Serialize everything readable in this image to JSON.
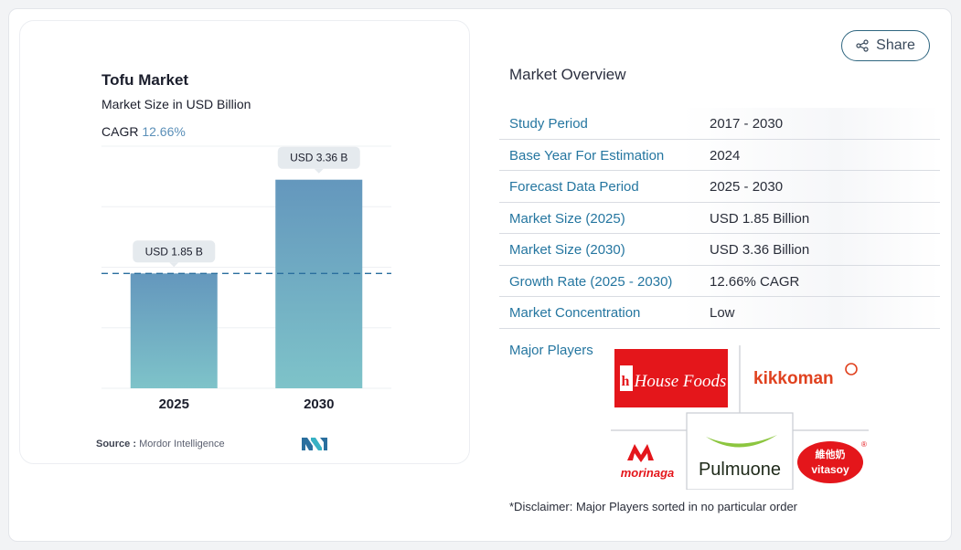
{
  "chart": {
    "title": "Tofu Market",
    "subtitle": "Market Size in USD Billion",
    "cagr_label": "CAGR",
    "cagr_value": "12.66%",
    "source_label": "Source :",
    "source_value": "Mordor Intelligence"
  },
  "chart_data": {
    "type": "bar",
    "categories": [
      "2025",
      "2030"
    ],
    "values": [
      1.85,
      3.36
    ],
    "data_labels": [
      "USD 1.85 B",
      "USD 3.36 B"
    ],
    "title": "Tofu Market",
    "subtitle": "Market Size in USD Billion",
    "ylim": [
      0,
      3.9
    ],
    "grid": true,
    "reference_line": 1.85
  },
  "share": {
    "label": "Share"
  },
  "overview": {
    "title": "Market Overview",
    "rows": [
      {
        "key": "Study Period",
        "value": "2017 - 2030"
      },
      {
        "key": "Base Year For Estimation",
        "value": "2024"
      },
      {
        "key": "Forecast Data Period",
        "value": "2025 - 2030"
      },
      {
        "key": "Market Size (2025)",
        "value": "USD 1.85 Billion"
      },
      {
        "key": "Market Size (2030)",
        "value": "USD 3.36 Billion"
      },
      {
        "key": "Growth Rate (2025 - 2030)",
        "value": "12.66% CAGR"
      },
      {
        "key": "Market Concentration",
        "value": "Low"
      }
    ]
  },
  "players": {
    "label": "Major Players",
    "logos": [
      "House Foods",
      "kikkoman",
      "morinaga",
      "Pulmuone",
      "vitasoy"
    ]
  },
  "disclaimer": "*Disclaimer: Major Players sorted in no particular order",
  "colors": {
    "accent": "#2576a0",
    "bar_top": "#6497bd",
    "bar_bottom": "#7ec3c9",
    "share_border": "#2f6680"
  }
}
